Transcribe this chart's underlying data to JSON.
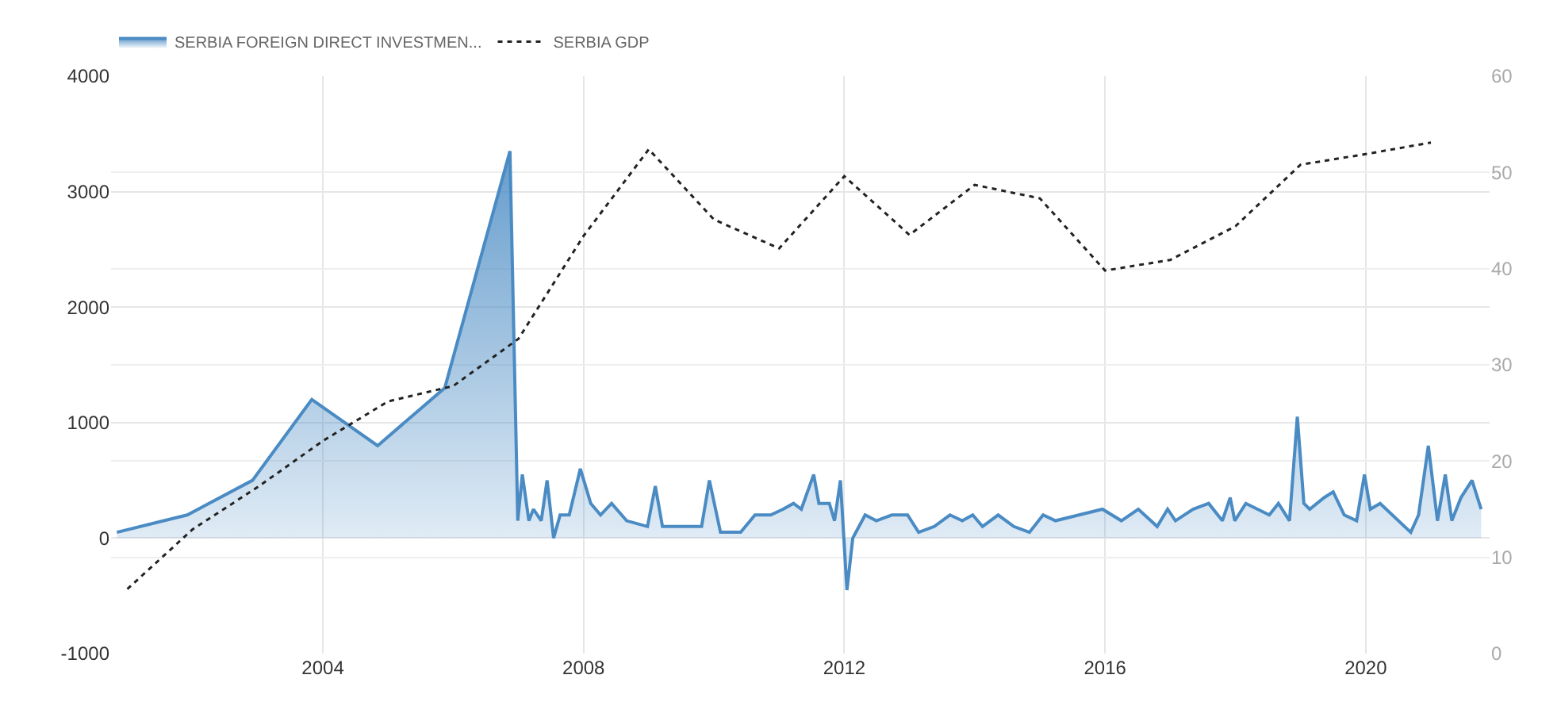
{
  "chart_data": {
    "type": "area",
    "xlim": [
      2000.75,
      2021.9
    ],
    "xticks": [
      2004,
      2008,
      2012,
      2016,
      2020
    ],
    "ylim": [
      -1000,
      4000
    ],
    "yticks": [
      -1000,
      0,
      1000,
      2000,
      3000,
      4000
    ],
    "y2lim": [
      0,
      60
    ],
    "y2ticks": [
      0,
      10,
      20,
      30,
      40,
      50,
      60
    ],
    "grid": true,
    "legend": "top left",
    "series": [
      {
        "name": "SERBIA FOREIGN DIRECT INVESTMEN...",
        "color": "#4a8bc4",
        "x": [
          2000.84,
          2001.56,
          2001.92,
          2002.92,
          2003.83,
          2004.84,
          2005.87,
          2006.87,
          2006.99,
          2007.06,
          2007.16,
          2007.23,
          2007.35,
          2007.44,
          2007.54,
          2007.64,
          2007.78,
          2007.95,
          2008.11,
          2008.26,
          2008.43,
          2008.66,
          2008.98,
          2009.1,
          2009.21,
          2009.55,
          2009.81,
          2009.93,
          2010.1,
          2010.41,
          2010.63,
          2010.87,
          2011.06,
          2011.22,
          2011.34,
          2011.53,
          2011.61,
          2011.77,
          2011.85,
          2011.94,
          2012.04,
          2012.13,
          2012.32,
          2012.49,
          2012.73,
          2012.97,
          2013.14,
          2013.38,
          2013.62,
          2013.81,
          2013.97,
          2014.12,
          2014.36,
          2014.6,
          2014.84,
          2015.05,
          2015.24,
          2015.6,
          2015.96,
          2016.25,
          2016.51,
          2016.8,
          2016.96,
          2017.08,
          2017.35,
          2017.59,
          2017.8,
          2017.92,
          2017.99,
          2018.16,
          2018.52,
          2018.66,
          2018.83,
          2018.95,
          2019.05,
          2019.14,
          2019.36,
          2019.5,
          2019.67,
          2019.86,
          2019.98,
          2020.07,
          2020.22,
          2020.69,
          2020.81,
          2020.96,
          2021.1,
          2021.22,
          2021.32,
          2021.46,
          2021.63,
          2021.77
        ],
        "values": [
          50,
          150,
          200,
          500,
          1200,
          800,
          1300,
          3350,
          150,
          550,
          150,
          250,
          150,
          500,
          0,
          200,
          200,
          600,
          300,
          200,
          300,
          150,
          100,
          450,
          100,
          100,
          100,
          500,
          50,
          50,
          200,
          200,
          250,
          300,
          250,
          550,
          300,
          300,
          150,
          500,
          -450,
          0,
          200,
          150,
          200,
          200,
          50,
          100,
          200,
          150,
          200,
          100,
          200,
          100,
          50,
          200,
          150,
          200,
          250,
          150,
          250,
          100,
          250,
          150,
          250,
          300,
          150,
          350,
          150,
          300,
          200,
          300,
          150,
          1050,
          300,
          250,
          350,
          400,
          200,
          150,
          550,
          250,
          300,
          50,
          200,
          800,
          150,
          550,
          150,
          350,
          500,
          250
        ]
      },
      {
        "name": "SERBIA GDP",
        "type": "line",
        "axis": "y2",
        "color": "#222222",
        "line_style": "dotted",
        "marker": "none",
        "x": [
          2001,
          2002,
          2003,
          2004,
          2005,
          2006,
          2007,
          2008,
          2009,
          2010,
          2011,
          2012,
          2013,
          2014,
          2015,
          2016,
          2017,
          2018,
          2019,
          2020,
          2021
        ],
        "values": [
          6.7,
          12.9,
          17.3,
          22.1,
          26.2,
          27.8,
          32.7,
          43.4,
          52.4,
          45.1,
          42.1,
          49.6,
          43.5,
          48.7,
          47.3,
          39.8,
          40.9,
          44.4,
          50.8,
          51.9,
          53.1
        ]
      }
    ]
  }
}
